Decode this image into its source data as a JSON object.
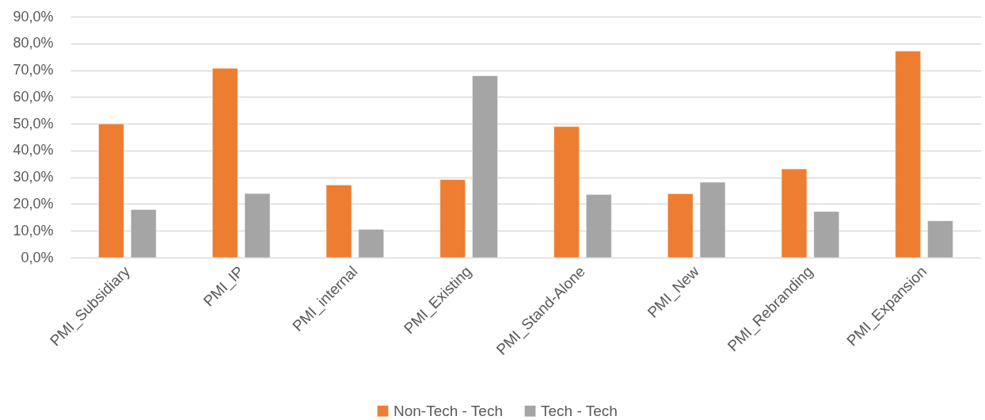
{
  "chart_data": {
    "type": "bar",
    "categories": [
      "PMI_Subsidiary",
      "PMI_IP",
      "PMI_internal",
      "PMI_Existing",
      "PMI_Stand-Alone",
      "PMI_New",
      "PMI_Rebranding",
      "PMI_Expansion"
    ],
    "series": [
      {
        "name": "Non-Tech - Tech",
        "color": "#ed7d31",
        "values": [
          49.9,
          70.7,
          27.1,
          29.1,
          48.9,
          23.8,
          33.1,
          77.1
        ]
      },
      {
        "name": "Tech - Tech",
        "color": "#a5a5a5",
        "values": [
          17.9,
          23.9,
          10.5,
          67.9,
          23.5,
          28.1,
          17.2,
          13.7
        ]
      }
    ],
    "ylim": [
      0,
      90
    ],
    "yticks": [
      {
        "value": 0,
        "label": "0,0%"
      },
      {
        "value": 10,
        "label": "10,0%"
      },
      {
        "value": 20,
        "label": "20,0%"
      },
      {
        "value": 30,
        "label": "30,0%"
      },
      {
        "value": 40,
        "label": "40,0%"
      },
      {
        "value": 50,
        "label": "50,0%"
      },
      {
        "value": 60,
        "label": "60,0%"
      },
      {
        "value": 70,
        "label": "70,0%"
      },
      {
        "value": 80,
        "label": "80,0%"
      },
      {
        "value": 90,
        "label": "90,0%"
      }
    ],
    "grid": "y",
    "legend": "bottom"
  }
}
